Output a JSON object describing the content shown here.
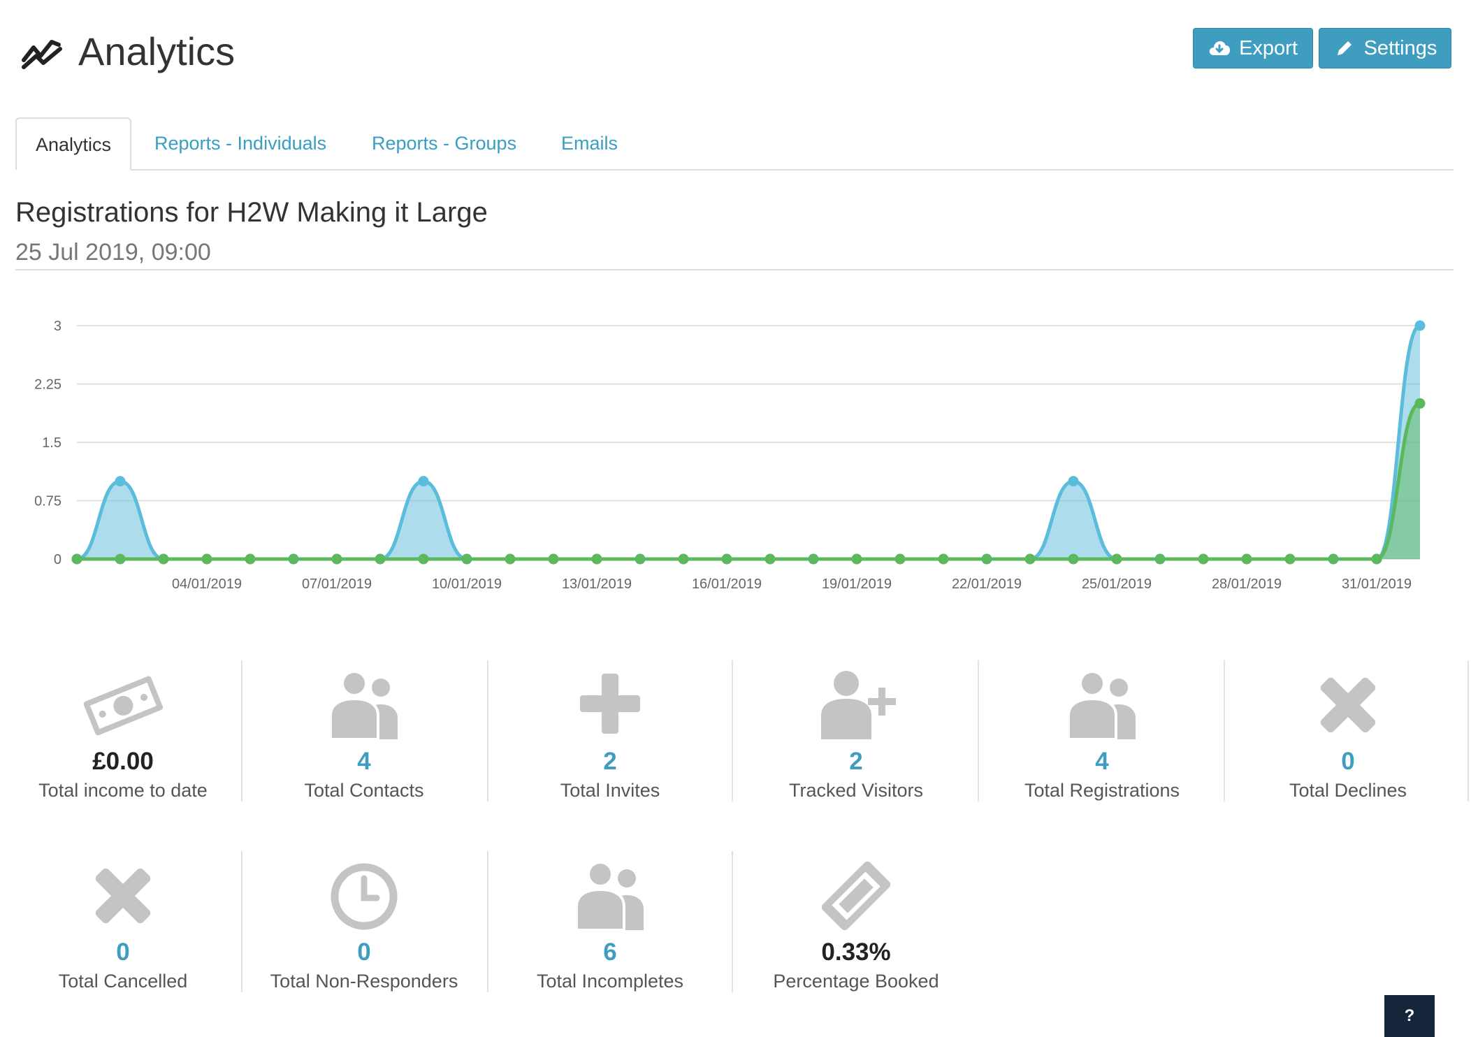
{
  "header": {
    "title": "Analytics",
    "icon": "line-chart-icon",
    "export_label": "Export",
    "settings_label": "Settings"
  },
  "tabs": [
    {
      "label": "Analytics",
      "active": true
    },
    {
      "label": "Reports - Individuals",
      "active": false
    },
    {
      "label": "Reports - Groups",
      "active": false
    },
    {
      "label": "Emails",
      "active": false
    }
  ],
  "event": {
    "title": "Registrations for H2W Making it Large",
    "datetime": "25 Jul 2019, 09:00"
  },
  "chart_data": {
    "type": "area",
    "ylim": [
      0,
      3
    ],
    "yticks": [
      "0",
      "0.75",
      "1.5",
      "2.25",
      "3"
    ],
    "x": [
      "01/01/2019",
      "02/01/2019",
      "03/01/2019",
      "04/01/2019",
      "05/01/2019",
      "06/01/2019",
      "07/01/2019",
      "08/01/2019",
      "09/01/2019",
      "10/01/2019",
      "11/01/2019",
      "12/01/2019",
      "13/01/2019",
      "14/01/2019",
      "15/01/2019",
      "16/01/2019",
      "17/01/2019",
      "18/01/2019",
      "19/01/2019",
      "20/01/2019",
      "21/01/2019",
      "22/01/2019",
      "23/01/2019",
      "24/01/2019",
      "25/01/2019",
      "26/01/2019",
      "27/01/2019",
      "28/01/2019",
      "29/01/2019",
      "30/01/2019",
      "31/01/2019",
      "01/02/2019"
    ],
    "xtick_labels": [
      "04/01/2019",
      "07/01/2019",
      "10/01/2019",
      "13/01/2019",
      "16/01/2019",
      "19/01/2019",
      "22/01/2019",
      "25/01/2019",
      "28/01/2019",
      "31/01/2019"
    ],
    "series": [
      {
        "color": "#5bbcdb",
        "values": [
          0,
          1,
          0,
          0,
          0,
          0,
          0,
          0,
          1,
          0,
          0,
          0,
          0,
          0,
          0,
          0,
          0,
          0,
          0,
          0,
          0,
          0,
          0,
          1,
          0,
          0,
          0,
          0,
          0,
          0,
          0,
          3
        ]
      },
      {
        "color": "#5cb85c",
        "values": [
          0,
          0,
          0,
          0,
          0,
          0,
          0,
          0,
          0,
          0,
          0,
          0,
          0,
          0,
          0,
          0,
          0,
          0,
          0,
          0,
          0,
          0,
          0,
          0,
          0,
          0,
          0,
          0,
          0,
          0,
          0,
          2
        ]
      }
    ],
    "grid": true
  },
  "stats": [
    {
      "value": "£0.00",
      "label": "Total income to date",
      "icon": "money-icon",
      "dark": true
    },
    {
      "value": "4",
      "label": "Total Contacts",
      "icon": "users-icon",
      "dark": false
    },
    {
      "value": "2",
      "label": "Total Invites",
      "icon": "plus-icon",
      "dark": false
    },
    {
      "value": "2",
      "label": "Tracked Visitors",
      "icon": "user-plus-icon",
      "dark": false
    },
    {
      "value": "4",
      "label": "Total Registrations",
      "icon": "users-icon",
      "dark": false
    },
    {
      "value": "0",
      "label": "Total Declines",
      "icon": "cross-icon",
      "dark": false
    },
    {
      "value": "0",
      "label": "Total Cancelled",
      "icon": "cross-icon",
      "dark": false
    },
    {
      "value": "0",
      "label": "Total Non-Responders",
      "icon": "clock-icon",
      "dark": false
    },
    {
      "value": "6",
      "label": "Total Incompletes",
      "icon": "users-icon",
      "dark": false
    },
    {
      "value": "0.33%",
      "label": "Percentage Booked",
      "icon": "ticket-icon",
      "dark": true
    }
  ],
  "help_label": "?"
}
